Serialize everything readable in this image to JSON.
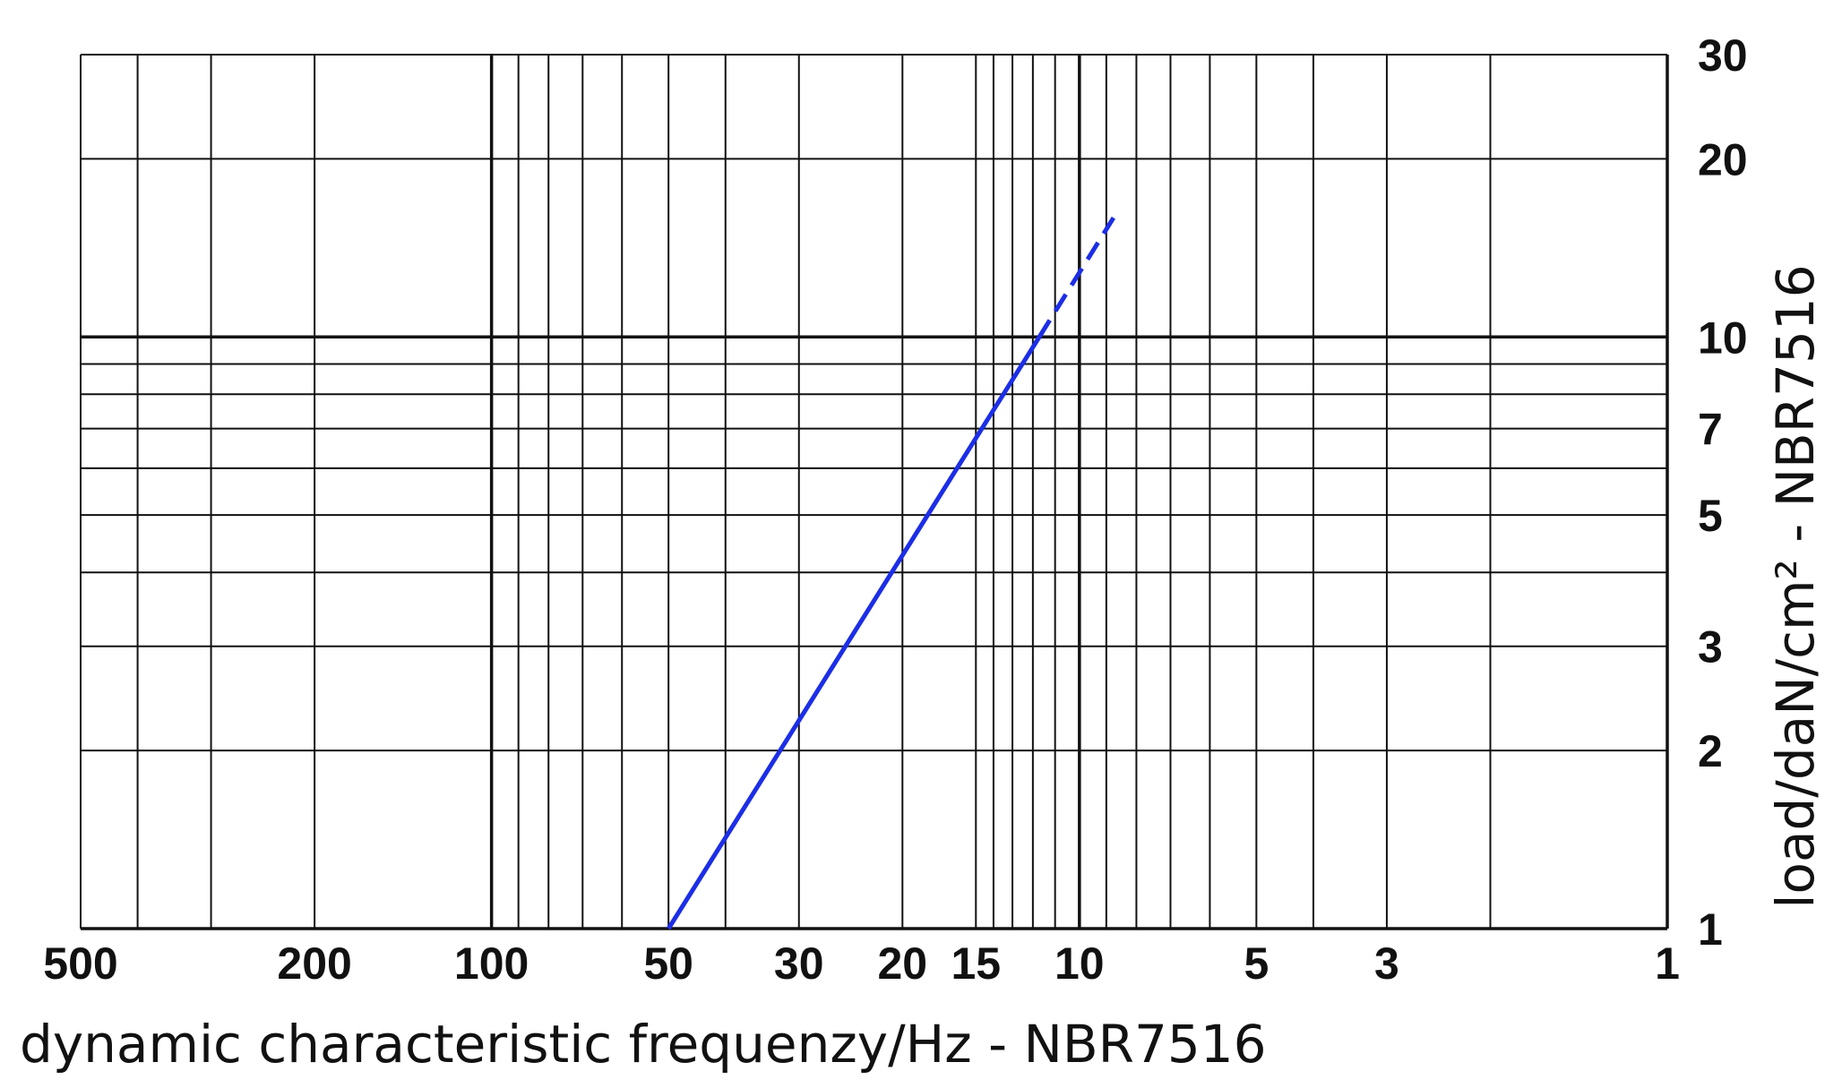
{
  "chart_data": {
    "type": "line",
    "x_label": "dynamic characteristic frequenzy/Hz - NBR7516",
    "y_label": "load/daN/cm² - NBR7516",
    "x_log": true,
    "y_log": true,
    "x_reversed": true,
    "grid": true,
    "xlim": [
      500,
      1
    ],
    "ylim": [
      1,
      30
    ],
    "xticks": [
      500,
      200,
      100,
      50,
      30,
      20,
      15,
      10,
      5,
      3,
      1
    ],
    "x_minor_ticks": [
      400,
      300,
      90,
      80,
      70,
      60,
      40,
      14,
      13,
      12,
      11,
      9,
      8,
      7,
      6,
      4,
      2
    ],
    "yticks": [
      1,
      2,
      3,
      5,
      7,
      10,
      20,
      30
    ],
    "y_minor_ticks": [
      4,
      6,
      8,
      9
    ],
    "series": [
      {
        "color": "#1c2ee6",
        "dashed": false,
        "x": [
          50,
          11.7
        ],
        "values": [
          1,
          10
        ]
      },
      {
        "color": "#1c2ee6",
        "dashed": true,
        "x": [
          11.7,
          8.75
        ],
        "values": [
          10,
          15.9
        ]
      }
    ]
  }
}
